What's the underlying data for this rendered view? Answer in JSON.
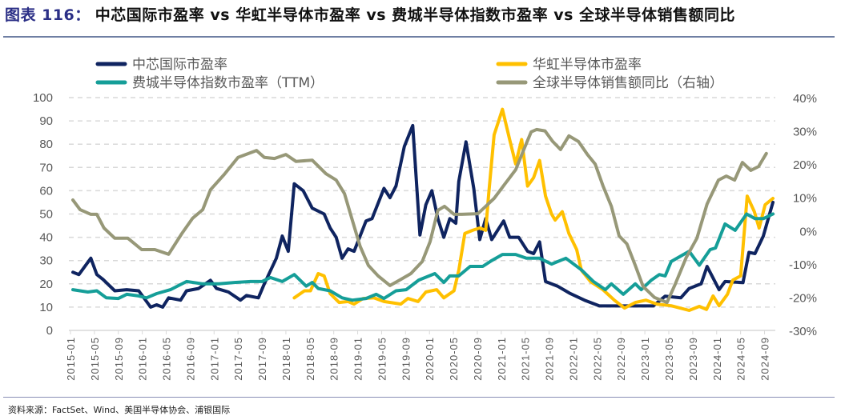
{
  "title_prefix": "图表 116：",
  "title": "中芯国际市盈率 vs 华虹半导体市盈率 vs 费城半导体指数市盈率 vs 全球半导体销售额同比",
  "source": "资料来源：FactSet、Wind、美国半导体协会、浦银国际",
  "chart_data": {
    "type": "line",
    "x_unit": "months since 2015-01",
    "x_ticks": [
      "2015-01",
      "2015-05",
      "2015-09",
      "2016-01",
      "2016-05",
      "2016-09",
      "2017-01",
      "2017-05",
      "2017-09",
      "2018-01",
      "2018-05",
      "2018-09",
      "2019-01",
      "2019-05",
      "2019-09",
      "2020-01",
      "2020-05",
      "2020-09",
      "2021-01",
      "2021-05",
      "2021-09",
      "2022-01",
      "2022-05",
      "2022-09",
      "2023-01",
      "2023-05",
      "2023-09",
      "2024-01",
      "2024-05",
      "2024-09"
    ],
    "y_left": {
      "ylim": [
        0,
        100
      ],
      "ticks": [
        "0",
        "10",
        "20",
        "30",
        "40",
        "50",
        "60",
        "70",
        "80",
        "90",
        "100"
      ]
    },
    "y_right": {
      "ylim": [
        -30,
        40
      ],
      "ticks": [
        "-30%",
        "-20%",
        "-10%",
        "0%",
        "10%",
        "20%",
        "30%",
        "40%"
      ]
    },
    "grid": true,
    "legend_placement": "top",
    "series": [
      {
        "name": "中芯国际市盈率",
        "color": "#0f2460",
        "axis": "left",
        "points": [
          [
            0,
            25
          ],
          [
            1,
            24
          ],
          [
            3,
            31
          ],
          [
            4,
            24
          ],
          [
            5,
            22
          ],
          [
            7,
            17
          ],
          [
            9,
            17.5
          ],
          [
            11,
            17
          ],
          [
            13,
            10
          ],
          [
            14,
            11
          ],
          [
            15,
            10
          ],
          [
            16,
            14
          ],
          [
            18,
            13
          ],
          [
            19,
            17
          ],
          [
            21,
            18
          ],
          [
            23,
            21.5
          ],
          [
            24,
            18
          ],
          [
            26,
            16.5
          ],
          [
            28,
            13
          ],
          [
            29,
            15
          ],
          [
            31,
            14
          ],
          [
            32,
            20
          ],
          [
            34,
            31
          ],
          [
            35,
            40.5
          ],
          [
            36,
            34
          ],
          [
            37,
            63
          ],
          [
            38.5,
            60
          ],
          [
            40,
            52.5
          ],
          [
            42,
            50
          ],
          [
            43,
            44
          ],
          [
            44,
            40
          ],
          [
            45,
            31
          ],
          [
            46,
            35
          ],
          [
            47,
            34
          ],
          [
            49,
            47
          ],
          [
            50,
            48
          ],
          [
            52,
            61
          ],
          [
            53,
            57
          ],
          [
            54,
            62
          ],
          [
            55.4,
            79
          ],
          [
            56.8,
            88
          ],
          [
            58,
            41
          ],
          [
            59,
            54
          ],
          [
            60,
            60
          ],
          [
            61,
            48
          ],
          [
            62,
            40
          ],
          [
            63,
            48
          ],
          [
            64,
            46
          ],
          [
            64.5,
            64
          ],
          [
            65.7,
            81
          ],
          [
            67,
            61
          ],
          [
            68,
            39
          ],
          [
            69,
            48
          ],
          [
            70,
            39
          ],
          [
            72,
            47
          ],
          [
            73,
            40
          ],
          [
            74.5,
            40
          ],
          [
            76,
            34
          ],
          [
            77,
            33
          ],
          [
            78,
            38
          ],
          [
            79,
            21
          ],
          [
            81,
            19
          ],
          [
            83,
            16
          ],
          [
            85.5,
            13
          ],
          [
            88,
            10.5
          ],
          [
            91,
            10.5
          ],
          [
            94,
            10.5
          ],
          [
            97,
            10.5
          ],
          [
            99,
            14.7
          ],
          [
            101.6,
            14
          ],
          [
            103,
            18
          ],
          [
            105,
            20
          ],
          [
            106,
            27.5
          ],
          [
            108,
            17.5
          ],
          [
            109,
            21
          ],
          [
            112,
            20.5
          ],
          [
            113,
            33.5
          ],
          [
            114,
            33
          ],
          [
            115.4,
            40.5
          ],
          [
            117,
            55
          ]
        ]
      },
      {
        "name": "华虹半导体市盈率",
        "color": "#ffc000",
        "axis": "left",
        "points": [
          [
            37,
            14
          ],
          [
            38.7,
            17
          ],
          [
            39.7,
            17
          ],
          [
            41,
            24.4
          ],
          [
            42,
            23.4
          ],
          [
            43,
            15.8
          ],
          [
            44.5,
            12
          ],
          [
            46,
            12.4
          ],
          [
            47,
            11.3
          ],
          [
            48.5,
            13.7
          ],
          [
            50.3,
            14
          ],
          [
            52,
            12.4
          ],
          [
            54.8,
            11.3
          ],
          [
            56,
            13.7
          ],
          [
            57.7,
            12.4
          ],
          [
            59,
            16.5
          ],
          [
            60.8,
            17.5
          ],
          [
            62,
            14
          ],
          [
            63.7,
            17
          ],
          [
            64.5,
            25.8
          ],
          [
            65.5,
            41.6
          ],
          [
            66.8,
            43
          ],
          [
            68,
            44
          ],
          [
            69,
            43
          ],
          [
            69.5,
            58.8
          ],
          [
            70.4,
            84
          ],
          [
            71.8,
            95
          ],
          [
            73,
            82
          ],
          [
            74,
            71.5
          ],
          [
            75,
            82
          ],
          [
            76,
            62
          ],
          [
            77,
            65.6
          ],
          [
            78,
            73
          ],
          [
            79,
            57.7
          ],
          [
            80,
            50
          ],
          [
            80.6,
            47.4
          ],
          [
            81.8,
            51
          ],
          [
            82.9,
            41.6
          ],
          [
            84.2,
            34.7
          ],
          [
            85,
            25.8
          ],
          [
            86.5,
            21
          ],
          [
            88.6,
            17.5
          ],
          [
            90.5,
            13
          ],
          [
            92.2,
            9.6
          ],
          [
            94,
            12
          ],
          [
            95.8,
            13
          ],
          [
            97.6,
            11.3
          ],
          [
            100,
            10.6
          ],
          [
            103,
            8.6
          ],
          [
            104.7,
            10.3
          ],
          [
            105.9,
            9
          ],
          [
            107,
            14.8
          ],
          [
            108,
            10.6
          ],
          [
            109.4,
            15.5
          ],
          [
            110.3,
            21.6
          ],
          [
            111.6,
            23.4
          ],
          [
            112.7,
            57.7
          ],
          [
            113.9,
            51
          ],
          [
            114.7,
            44
          ],
          [
            115.7,
            54
          ],
          [
            117,
            56.7
          ]
        ]
      },
      {
        "name": "费城半导体指数市盈率（TTM）",
        "color": "#159e98",
        "axis": "left",
        "points": [
          [
            0,
            17.5
          ],
          [
            2.5,
            16.5
          ],
          [
            4,
            17
          ],
          [
            5.6,
            14
          ],
          [
            7.6,
            13.7
          ],
          [
            9,
            15.5
          ],
          [
            11,
            14.8
          ],
          [
            12.3,
            14
          ],
          [
            14,
            15.8
          ],
          [
            16.3,
            17.5
          ],
          [
            19,
            21
          ],
          [
            21.7,
            20
          ],
          [
            24.4,
            20
          ],
          [
            27,
            20.6
          ],
          [
            29.7,
            21
          ],
          [
            31.6,
            21
          ],
          [
            33,
            22.7
          ],
          [
            35,
            21
          ],
          [
            37,
            24
          ],
          [
            39,
            19
          ],
          [
            40,
            20.6
          ],
          [
            41,
            18
          ],
          [
            43,
            17
          ],
          [
            45,
            14
          ],
          [
            46.7,
            13
          ],
          [
            49,
            13.7
          ],
          [
            50.7,
            15.5
          ],
          [
            52,
            13.7
          ],
          [
            54,
            17
          ],
          [
            55.7,
            17.5
          ],
          [
            57.8,
            21.6
          ],
          [
            60.5,
            24.4
          ],
          [
            62,
            20.6
          ],
          [
            63,
            23.4
          ],
          [
            64.5,
            23.4
          ],
          [
            66.4,
            27.5
          ],
          [
            68.5,
            27.5
          ],
          [
            70,
            30
          ],
          [
            71.8,
            32.6
          ],
          [
            74,
            32.6
          ],
          [
            75.8,
            31
          ],
          [
            78,
            31
          ],
          [
            80,
            28.5
          ],
          [
            82.4,
            31
          ],
          [
            85,
            26
          ],
          [
            87,
            21
          ],
          [
            89,
            17.5
          ],
          [
            90,
            20
          ],
          [
            92,
            15.5
          ],
          [
            94,
            20
          ],
          [
            95,
            17.5
          ],
          [
            96.7,
            21.6
          ],
          [
            98,
            24
          ],
          [
            99,
            23.4
          ],
          [
            100,
            29.6
          ],
          [
            103,
            34
          ],
          [
            104.7,
            28
          ],
          [
            106.5,
            34.7
          ],
          [
            107.4,
            35.4
          ],
          [
            109,
            45.7
          ],
          [
            110.7,
            43
          ],
          [
            112.6,
            50
          ],
          [
            114,
            48
          ],
          [
            115.4,
            48
          ],
          [
            117,
            50
          ]
        ]
      },
      {
        "name": "全球半导体销售额同比（右轴）",
        "color": "#979878",
        "axis": "right",
        "points": [
          [
            0,
            9.2
          ],
          [
            1.2,
            6.3
          ],
          [
            3,
            4.9
          ],
          [
            4,
            4.9
          ],
          [
            5.2,
            0.8
          ],
          [
            7,
            -2.3
          ],
          [
            9.2,
            -2.3
          ],
          [
            11.5,
            -5.7
          ],
          [
            13.7,
            -5.7
          ],
          [
            16,
            -7.1
          ],
          [
            18.2,
            -0.9
          ],
          [
            20,
            3.7
          ],
          [
            21.7,
            6.3
          ],
          [
            23,
            12.3
          ],
          [
            25.3,
            16.9
          ],
          [
            27.6,
            22
          ],
          [
            30.7,
            24.1
          ],
          [
            32,
            22
          ],
          [
            33.7,
            21.7
          ],
          [
            35.6,
            22.9
          ],
          [
            37.3,
            20.8
          ],
          [
            40,
            21.2
          ],
          [
            42.3,
            17.1
          ],
          [
            44,
            15.2
          ],
          [
            45.4,
            11.1
          ],
          [
            46.7,
            3.2
          ],
          [
            48,
            -4.7
          ],
          [
            49.4,
            -10.5
          ],
          [
            51,
            -13.6
          ],
          [
            53,
            -16.5
          ],
          [
            54.7,
            -14.8
          ],
          [
            56.5,
            -12.9
          ],
          [
            58.4,
            -9.3
          ],
          [
            59.7,
            -3.3
          ],
          [
            61,
            6.1
          ],
          [
            62.1,
            7.3
          ],
          [
            63.7,
            4.9
          ],
          [
            65,
            4.9
          ],
          [
            67.7,
            5.1
          ],
          [
            69,
            7.3
          ],
          [
            70.4,
            9.7
          ],
          [
            72.2,
            14
          ],
          [
            74,
            18.3
          ],
          [
            75.3,
            24.1
          ],
          [
            76.6,
            29.7
          ],
          [
            77.5,
            30.4
          ],
          [
            78.9,
            30
          ],
          [
            80.2,
            26.8
          ],
          [
            81.5,
            24.4
          ],
          [
            82.9,
            28.5
          ],
          [
            84.5,
            26.8
          ],
          [
            86,
            22.9
          ],
          [
            87.3,
            20
          ],
          [
            88.6,
            13.5
          ],
          [
            90,
            7.3
          ],
          [
            91.3,
            -1.6
          ],
          [
            92.6,
            -4
          ],
          [
            94,
            -10.5
          ],
          [
            95.3,
            -16.8
          ],
          [
            97.2,
            -20.1
          ],
          [
            99.3,
            -21.6
          ],
          [
            100.7,
            -16
          ],
          [
            102.5,
            -8.1
          ],
          [
            104.3,
            -2.3
          ],
          [
            106,
            8
          ],
          [
            107.9,
            15.2
          ],
          [
            109.2,
            16.4
          ],
          [
            110.6,
            15.2
          ],
          [
            111.9,
            20.5
          ],
          [
            113.3,
            18.1
          ],
          [
            114.6,
            19.3
          ],
          [
            115.9,
            23.2
          ]
        ]
      }
    ]
  }
}
